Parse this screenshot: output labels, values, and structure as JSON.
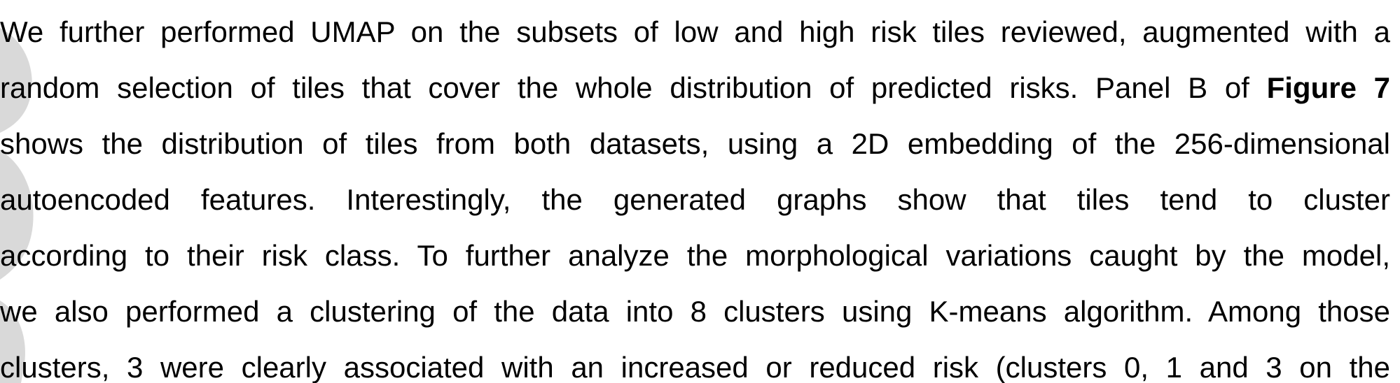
{
  "paragraph": {
    "line1": "We further performed UMAP on the subsets of low and high risk tiles reviewed, augmented with a",
    "line2_before": "random selection of tiles that cover the whole distribution of predicted risks. Panel B of ",
    "line2_bold": "Figure 7",
    "line3": "shows the distribution of tiles from both datasets, using a 2D embedding of the 256-dimensional",
    "line4": "autoencoded features. Interestingly, the generated graphs show that tiles tend to cluster",
    "line5": "according to their risk class. To further analyze the morphological variations caught by the model,",
    "line6": "we also performed a clustering of the data into 8 clusters using K-means algorithm. Among those",
    "line7": "clusters, 3 were clearly associated with an increased or reduced risk (clusters 0, 1 and 3 on the"
  },
  "colors": {
    "text": "#000000",
    "watermark": "#d9d9d9"
  }
}
